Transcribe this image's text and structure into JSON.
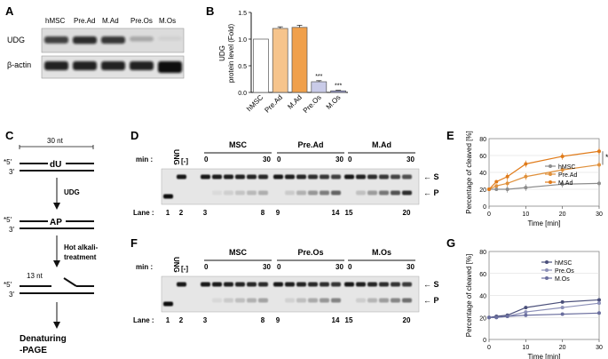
{
  "panelA": {
    "letter": "A",
    "lanes": [
      "hMSC",
      "Pre.Ad",
      "M.Ad",
      "Pre.Os",
      "M.Os"
    ],
    "rows": [
      "UDG",
      "β-actin"
    ]
  },
  "panelB": {
    "letter": "B",
    "sig1": "***",
    "sig2": "***"
  },
  "panelC": {
    "letter": "C",
    "length_top": "30 nt",
    "five_prime": "*5′",
    "three_prime": "3′",
    "du": "dU",
    "udg": "UDG",
    "ap": "AP",
    "hot1": "Hot alkali-",
    "hot2": "treatment",
    "length_cut": "13 nt",
    "den1": "Denaturing",
    "den2": "-PAGE"
  },
  "panelD": {
    "letter": "D",
    "groups": [
      "MSC",
      "Pre.Ad",
      "M.Ad"
    ],
    "min_label": "min :",
    "t0": "0",
    "t30": "30",
    "ung": "UNG",
    "neg": "[-]",
    "lane_label": "Lane :",
    "lane_numbers": [
      "1",
      "2",
      "3",
      "8",
      "9",
      "14",
      "15",
      "20"
    ],
    "s_label": "← S",
    "p_label": "← P"
  },
  "panelF": {
    "letter": "F",
    "groups": [
      "MSC",
      "Pre.Os",
      "M.Os"
    ],
    "min_label": "min :",
    "t0": "0",
    "t30": "30",
    "ung": "UNG",
    "neg": "[-]",
    "lane_label": "Lane :",
    "lane_numbers": [
      "1",
      "2",
      "3",
      "8",
      "9",
      "14",
      "15",
      "20"
    ],
    "s_label": "← S",
    "p_label": "← P"
  },
  "panelE": {
    "letter": "E",
    "sig": "*"
  },
  "panelG": {
    "letter": "G"
  },
  "chart_data": [
    {
      "id": "B",
      "type": "bar",
      "categories": [
        "hMSC",
        "Pre.Ad",
        "M.Ad",
        "Pre.Os",
        "M.Os"
      ],
      "values": [
        1.0,
        1.2,
        1.22,
        0.2,
        0.03
      ],
      "errors": [
        0,
        0.03,
        0.04,
        0.02,
        0.01
      ],
      "colors": [
        "#ffffff",
        "#f6c48c",
        "#f0a04b",
        "#c9cbe8",
        "#9a9fd3"
      ],
      "ylabel": "UDG\nprotein level (Fold)",
      "ylim": [
        0,
        1.5
      ],
      "yticks": [
        "0.0",
        "0.5",
        "1.0",
        "1.5"
      ]
    },
    {
      "id": "E",
      "type": "line",
      "x": [
        0,
        2,
        5,
        10,
        20,
        30
      ],
      "ylim": [
        0,
        80
      ],
      "yticks": [
        "0",
        "20",
        "40",
        "60",
        "80"
      ],
      "xticks": [
        "0",
        "10",
        "20",
        "30"
      ],
      "xlabel": "Time [min]",
      "ylabel": "Percentage of cleaved [%]",
      "legend": "bottom-right",
      "series": [
        {
          "name": "hMSC",
          "color": "#8c8c8c",
          "values": [
            20,
            20,
            20,
            22,
            26,
            27
          ]
        },
        {
          "name": "Pre.Ad",
          "color": "#e0913c",
          "values": [
            20,
            24,
            27,
            35,
            43,
            49
          ]
        },
        {
          "name": "M.Ad",
          "color": "#e07b1a",
          "values": [
            20,
            29,
            35,
            50,
            59,
            65
          ]
        }
      ]
    },
    {
      "id": "G",
      "type": "line",
      "x": [
        0,
        2,
        5,
        10,
        20,
        30
      ],
      "ylim": [
        0,
        80
      ],
      "yticks": [
        "0",
        "20",
        "40",
        "60",
        "80"
      ],
      "xticks": [
        "0",
        "10",
        "20",
        "30"
      ],
      "xlabel": "Time [min]",
      "ylabel": "Percentage of cleaved [%]",
      "legend": "top-right",
      "series": [
        {
          "name": "hMSC",
          "color": "#4a4f7a",
          "values": [
            20,
            21,
            22,
            29,
            34,
            36
          ]
        },
        {
          "name": "Pre.Os",
          "color": "#8c90b8",
          "values": [
            20,
            20,
            21,
            25,
            29,
            33
          ]
        },
        {
          "name": "M.Os",
          "color": "#6a6e9e",
          "values": [
            20,
            20,
            21,
            22,
            23,
            24
          ]
        }
      ]
    }
  ]
}
